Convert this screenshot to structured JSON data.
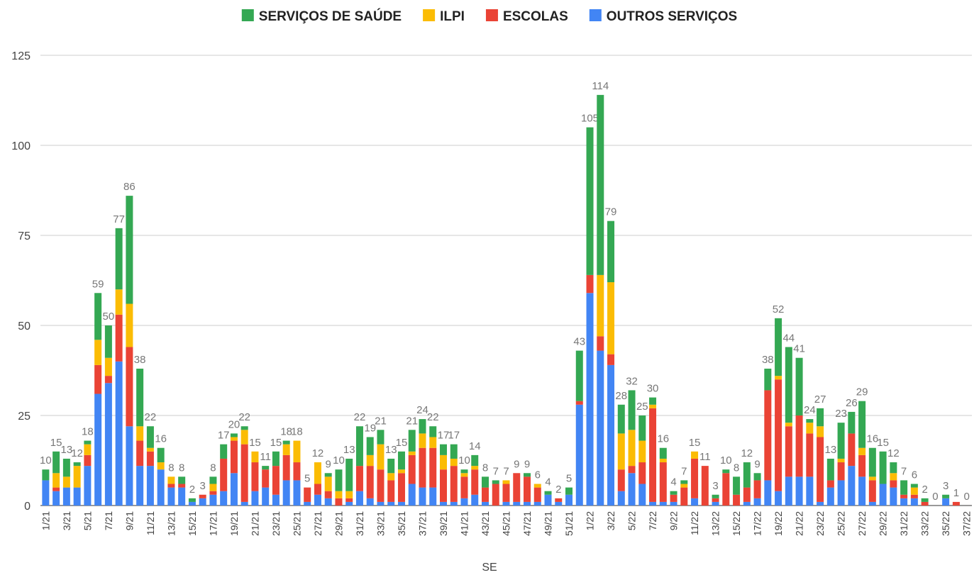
{
  "chart_data": {
    "type": "stacked_bar",
    "x_label": "SE",
    "categories": [
      "1/21",
      null,
      "3/21",
      null,
      "5/21",
      null,
      "7/21",
      null,
      "9/21",
      null,
      "11/21",
      null,
      "13/21",
      null,
      "15/21",
      null,
      "17/21",
      null,
      "19/21",
      null,
      "21/21",
      null,
      "23/21",
      null,
      "25/21",
      null,
      "27/21",
      null,
      "29/21",
      null,
      "31/21",
      null,
      "33/21",
      null,
      "35/21",
      null,
      "37/21",
      null,
      "39/21",
      null,
      "41/21",
      null,
      "43/21",
      null,
      "45/21",
      null,
      "47/21",
      null,
      "49/21",
      null,
      "51/21",
      null,
      "1/22",
      null,
      "3/22",
      null,
      "5/22",
      null,
      "7/22",
      null,
      "9/22",
      null,
      "11/22",
      null,
      "13/22",
      null,
      "15/22",
      null,
      "17/22",
      null,
      "19/22",
      null,
      "21/22",
      null,
      "23/22",
      null,
      "25/22",
      null,
      "27/22",
      null,
      "29/22",
      null,
      "31/22",
      null,
      "33/22",
      null,
      "35/22",
      null,
      "37/22"
    ],
    "series": [
      {
        "name": "SERVIÇOS DE SAÚDE",
        "color": "#34a853",
        "values": [
          3,
          6,
          5,
          1,
          1,
          13,
          9,
          17,
          30,
          16,
          6,
          4,
          0,
          2,
          1,
          0,
          2,
          4,
          1,
          1,
          0,
          1,
          4,
          1,
          0,
          0,
          0,
          1,
          6,
          9,
          11,
          5,
          4,
          4,
          5,
          6,
          4,
          3,
          3,
          4,
          1,
          3,
          3,
          1,
          0,
          0,
          1,
          0,
          1,
          0,
          2,
          14,
          41,
          50,
          17,
          8,
          11,
          7,
          2,
          3,
          1,
          1,
          0,
          0,
          1,
          1,
          5,
          7,
          2,
          6,
          16,
          21,
          16,
          1,
          5,
          6,
          10,
          6,
          13,
          8,
          9,
          3,
          4,
          1,
          1,
          0,
          1,
          0,
          0
        ]
      },
      {
        "name": "ILPI",
        "color": "#fbbc04",
        "values": [
          0,
          4,
          3,
          6,
          3,
          7,
          5,
          7,
          12,
          4,
          1,
          2,
          2,
          0,
          0,
          0,
          2,
          0,
          1,
          4,
          3,
          0,
          0,
          3,
          6,
          0,
          6,
          4,
          2,
          2,
          0,
          3,
          7,
          2,
          1,
          1,
          4,
          3,
          4,
          2,
          1,
          1,
          0,
          0,
          1,
          0,
          0,
          1,
          0,
          0,
          0,
          0,
          0,
          17,
          20,
          10,
          10,
          6,
          1,
          1,
          0,
          1,
          2,
          0,
          0,
          0,
          0,
          0,
          0,
          0,
          1,
          1,
          0,
          3,
          3,
          0,
          1,
          0,
          2,
          1,
          0,
          2,
          0,
          2,
          0,
          0,
          0,
          0,
          0
        ]
      },
      {
        "name": "ESCOLAS",
        "color": "#ea4335",
        "values": [
          0,
          1,
          0,
          0,
          3,
          8,
          2,
          13,
          22,
          7,
          4,
          0,
          1,
          1,
          0,
          1,
          1,
          9,
          9,
          16,
          8,
          5,
          8,
          7,
          5,
          4,
          3,
          2,
          2,
          1,
          7,
          9,
          9,
          6,
          8,
          8,
          11,
          11,
          9,
          10,
          6,
          7,
          4,
          6,
          5,
          8,
          7,
          4,
          0,
          1,
          0,
          1,
          5,
          4,
          3,
          6,
          2,
          6,
          26,
          11,
          2,
          5,
          11,
          11,
          1,
          9,
          3,
          4,
          5,
          25,
          31,
          14,
          17,
          12,
          18,
          2,
          5,
          9,
          6,
          6,
          0,
          2,
          1,
          1,
          1,
          0,
          0,
          1,
          0
        ]
      },
      {
        "name": "OUTROS SERVIÇOS",
        "color": "#4285f4",
        "values": [
          7,
          4,
          5,
          5,
          11,
          31,
          34,
          40,
          22,
          11,
          11,
          10,
          5,
          5,
          1,
          2,
          3,
          4,
          9,
          1,
          4,
          5,
          3,
          7,
          7,
          1,
          3,
          2,
          0,
          1,
          4,
          2,
          1,
          1,
          1,
          6,
          5,
          5,
          1,
          1,
          2,
          3,
          1,
          0,
          1,
          1,
          1,
          1,
          3,
          1,
          3,
          28,
          59,
          43,
          39,
          4,
          9,
          6,
          1,
          1,
          1,
          0,
          2,
          0,
          1,
          0,
          0,
          1,
          2,
          7,
          4,
          8,
          8,
          8,
          1,
          5,
          7,
          11,
          8,
          1,
          6,
          5,
          2,
          2,
          0,
          0,
          2,
          0,
          0
        ]
      }
    ],
    "totals": [
      10,
      15,
      13,
      12,
      18,
      59,
      50,
      77,
      86,
      38,
      22,
      16,
      8,
      8,
      2,
      3,
      8,
      17,
      20,
      22,
      15,
      11,
      15,
      18,
      18,
      5,
      12,
      9,
      10,
      13,
      22,
      19,
      21,
      13,
      15,
      21,
      24,
      22,
      17,
      17,
      10,
      14,
      8,
      7,
      7,
      9,
      9,
      6,
      4,
      2,
      5,
      43,
      105,
      114,
      79,
      28,
      32,
      25,
      30,
      16,
      4,
      7,
      15,
      11,
      3,
      10,
      8,
      12,
      9,
      38,
      52,
      44,
      41,
      24,
      27,
      13,
      23,
      26,
      29,
      16,
      15,
      12,
      7,
      6,
      2,
      0,
      3,
      1,
      0
    ],
    "ylim": [
      0,
      125
    ],
    "yticks": [
      0,
      25,
      50,
      75,
      100,
      125
    ],
    "grid": true,
    "legend": "top"
  }
}
